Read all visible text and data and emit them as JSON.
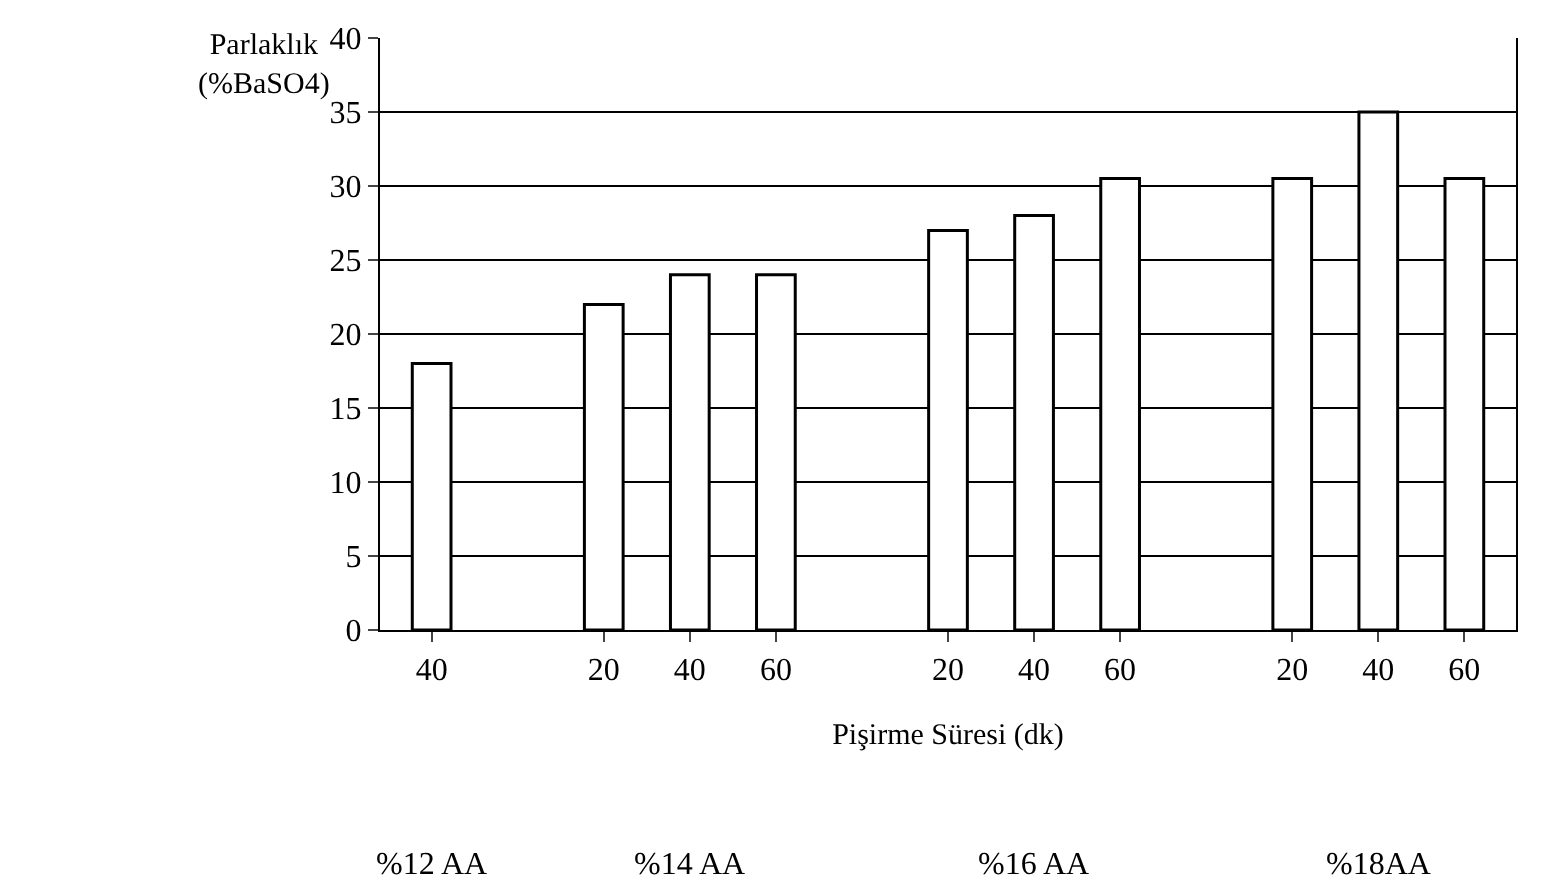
{
  "chart_data": {
    "type": "bar",
    "ylabel": "Parlaklık\n(%BaSO4)",
    "xlabel": "Pişirme Süresi (dk)",
    "categories": [
      "40",
      null,
      "20",
      "40",
      "60",
      null,
      "20",
      "40",
      "60",
      null,
      "20",
      "40",
      "60"
    ],
    "values": [
      18,
      null,
      22,
      24,
      24,
      null,
      27,
      28,
      30.5,
      null,
      30.5,
      35,
      30.5
    ],
    "color": "#ffffff",
    "ylim": [
      0,
      40
    ],
    "yticks": [
      0,
      5,
      10,
      15,
      20,
      25,
      30,
      35,
      40
    ],
    "grid": "y",
    "annotations": [
      "%12 AA",
      "%14 AA",
      "%16 AA",
      "%18AA"
    ]
  }
}
